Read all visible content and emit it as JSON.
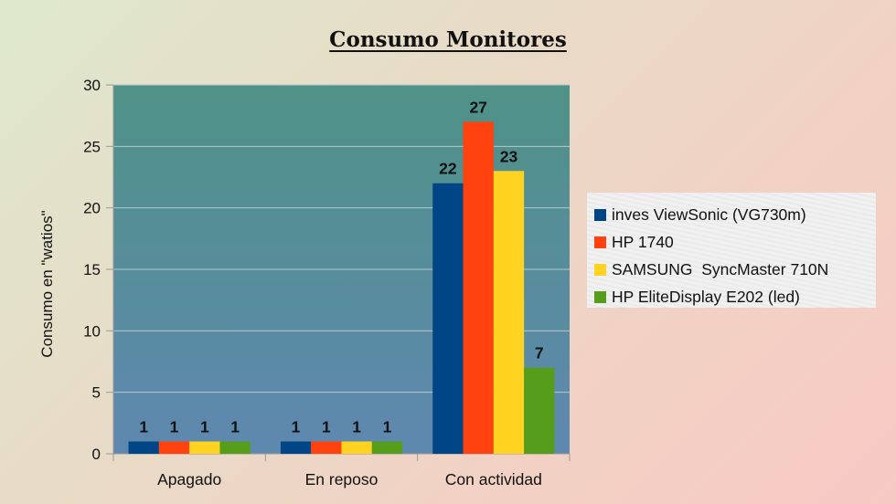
{
  "colors": {
    "plot_background_top": "#4f9287",
    "plot_background_bottom": "#5f88b0",
    "gridline": "#b7c7cf",
    "axis": "#999999"
  },
  "chart_data": {
    "type": "bar",
    "title": "Consumo Monitores",
    "xlabel": "",
    "ylabel": "Consumo en \"watios\"",
    "ylim": [
      0,
      30
    ],
    "yticks": [
      0,
      5,
      10,
      15,
      20,
      25,
      30
    ],
    "grid": true,
    "legend_position": "right",
    "categories": [
      "Apagado",
      "En reposo",
      "Con actividad"
    ],
    "series": [
      {
        "name": "inves ViewSonic (VG730m)",
        "color": "#004586",
        "values": [
          1,
          1,
          22
        ]
      },
      {
        "name": "HP 1740",
        "color": "#ff420e",
        "values": [
          1,
          1,
          27
        ]
      },
      {
        "name": "SAMSUNG  SyncMaster 710N",
        "color": "#ffd320",
        "values": [
          1,
          1,
          23
        ]
      },
      {
        "name": "HP EliteDisplay E202 (led)",
        "color": "#579d1c",
        "values": [
          1,
          1,
          7
        ]
      }
    ]
  }
}
